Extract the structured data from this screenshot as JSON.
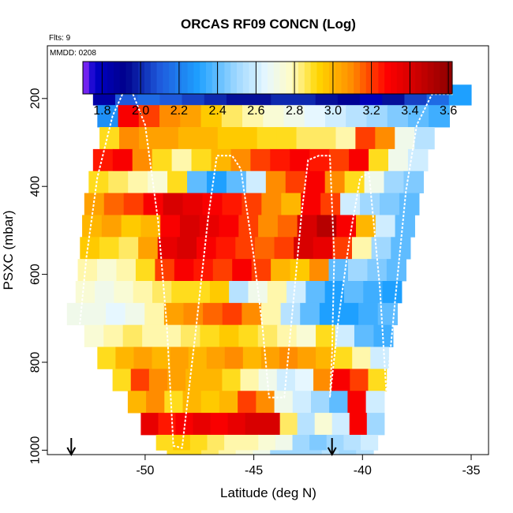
{
  "chart_data": {
    "type": "heatmap",
    "title": "ORCAS RF09 CONCN (Log)",
    "flight_note": "Flts: 9",
    "date_note": "MMDD: 0208",
    "xlabel": "Latitude (deg N)",
    "ylabel": "PSXC (mbar)",
    "xlim": [
      -54.5,
      -34.2
    ],
    "ylim": [
      1010,
      80
    ],
    "y_reversed": true,
    "x_ticks": [
      -50,
      -45,
      -40,
      -35
    ],
    "y_ticks": [
      200,
      400,
      600,
      800,
      1000
    ],
    "colorbar": {
      "range": [
        1.7,
        3.62
      ],
      "ticks": [
        1.8,
        2.0,
        2.2,
        2.4,
        2.6,
        2.8,
        3.0,
        3.2,
        3.4,
        3.6
      ],
      "stops": [
        {
          "v": 1.7,
          "c": "#9b30ff"
        },
        {
          "v": 1.76,
          "c": "#0000c8"
        },
        {
          "v": 1.92,
          "c": "#00008b"
        },
        {
          "v": 2.1,
          "c": "#1e5adc"
        },
        {
          "v": 2.3,
          "c": "#1ea0ff"
        },
        {
          "v": 2.5,
          "c": "#a0d8ff"
        },
        {
          "v": 2.65,
          "c": "#e6f7ff"
        },
        {
          "v": 2.78,
          "c": "#fffcc8"
        },
        {
          "v": 2.92,
          "c": "#ffd700"
        },
        {
          "v": 3.1,
          "c": "#ff8c00"
        },
        {
          "v": 3.28,
          "c": "#ff0000"
        },
        {
          "v": 3.45,
          "c": "#c80000"
        },
        {
          "v": 3.62,
          "c": "#8b0000"
        }
      ]
    },
    "rows": [
      {
        "p": 190,
        "x0": -52.4,
        "x1": -35.0,
        "values": [
          1.85,
          2.1,
          2.15,
          2.1,
          2.05,
          2.0,
          1.95,
          1.95,
          2.0,
          2.0,
          1.95,
          1.9,
          1.8,
          1.95,
          2.05,
          2.15,
          2.3
        ]
      },
      {
        "p": 240,
        "x0": -52.2,
        "x1": -36.0,
        "values": [
          2.25,
          3.3,
          3.2,
          3.1,
          3.05,
          2.95,
          2.85,
          2.8,
          2.75,
          2.7,
          2.65,
          2.6,
          2.55,
          2.5,
          2.45,
          2.4,
          2.35
        ]
      },
      {
        "p": 290,
        "x0": -52.1,
        "x1": -36.7,
        "values": [
          2.9,
          3.1,
          3.05,
          3.05,
          3.0,
          3.0,
          2.95,
          2.95,
          2.9,
          2.9,
          2.85,
          2.85,
          2.8,
          3.2,
          3.1,
          2.7,
          2.55
        ]
      },
      {
        "p": 340,
        "x0": -52.4,
        "x1": -37.0,
        "values": [
          3.25,
          3.3,
          3.1,
          2.9,
          2.8,
          2.9,
          3.0,
          3.1,
          3.2,
          3.25,
          3.3,
          3.25,
          3.2,
          3.3,
          2.9,
          2.7,
          2.6
        ]
      },
      {
        "p": 390,
        "x0": -52.6,
        "x1": -37.2,
        "values": [
          2.9,
          2.85,
          2.8,
          2.75,
          2.9,
          2.4,
          2.3,
          2.4,
          2.6,
          3.1,
          3.2,
          3.3,
          3.1,
          2.9,
          2.7,
          2.5,
          2.45
        ]
      },
      {
        "p": 440,
        "x0": -52.8,
        "x1": -37.4,
        "values": [
          3.05,
          3.15,
          3.2,
          3.3,
          3.4,
          3.35,
          3.3,
          3.25,
          3.2,
          3.1,
          3.0,
          3.3,
          3.2,
          2.6,
          2.5,
          2.45,
          2.4
        ]
      },
      {
        "p": 490,
        "x0": -52.9,
        "x1": -37.6,
        "values": [
          3.0,
          3.05,
          2.95,
          3.0,
          3.3,
          3.4,
          3.35,
          3.3,
          3.2,
          3.1,
          3.15,
          3.4,
          3.5,
          3.3,
          3.0,
          2.6,
          2.4
        ]
      },
      {
        "p": 540,
        "x0": -53.0,
        "x1": -37.8,
        "values": [
          2.95,
          2.9,
          2.85,
          3.05,
          3.35,
          3.4,
          3.3,
          3.25,
          3.2,
          3.15,
          3.2,
          3.4,
          3.35,
          3.2,
          2.8,
          2.5,
          2.4
        ]
      },
      {
        "p": 590,
        "x0": -53.1,
        "x1": -38.0,
        "values": [
          2.8,
          2.75,
          2.8,
          2.9,
          3.2,
          3.3,
          3.25,
          3.2,
          3.3,
          3.2,
          3.0,
          2.95,
          3.1,
          2.4,
          2.5,
          2.45,
          2.4
        ]
      },
      {
        "p": 640,
        "x0": -53.2,
        "x1": -38.2,
        "values": [
          2.75,
          2.7,
          2.75,
          2.8,
          2.85,
          2.9,
          2.9,
          2.95,
          2.55,
          2.7,
          2.8,
          2.6,
          2.4,
          2.3,
          2.4,
          2.35,
          2.3
        ]
      },
      {
        "p": 690,
        "x0": -53.6,
        "x1": -38.4,
        "values": [
          2.7,
          2.7,
          2.65,
          2.7,
          2.8,
          3.05,
          3.1,
          3.15,
          3.2,
          3.1,
          2.8,
          2.55,
          2.4,
          2.3,
          2.3,
          2.35,
          2.4
        ]
      },
      {
        "p": 740,
        "x0": -52.8,
        "x1": -38.6,
        "values": [
          2.75,
          2.8,
          2.85,
          2.8,
          2.8,
          2.85,
          2.9,
          2.95,
          2.9,
          2.85,
          2.8,
          2.75,
          2.9,
          2.6,
          2.4,
          2.35
        ]
      },
      {
        "p": 790,
        "x0": -52.2,
        "x1": -38.8,
        "values": [
          2.9,
          3.0,
          3.05,
          3.0,
          3.05,
          3.0,
          3.05,
          3.1,
          3.0,
          3.05,
          3.1,
          3.05,
          3.0,
          2.9,
          2.8,
          2.6
        ]
      },
      {
        "p": 840,
        "x0": -51.5,
        "x1": -38.9,
        "values": [
          2.9,
          3.2,
          3.1,
          3.05,
          3.0,
          3.0,
          2.9,
          2.8,
          2.7,
          2.6,
          2.65,
          3.1,
          3.3,
          3.2,
          2.9
        ]
      },
      {
        "p": 890,
        "x0": -50.8,
        "x1": -39.0,
        "values": [
          3.0,
          3.1,
          2.9,
          3.0,
          2.95,
          3.0,
          3.2,
          3.1,
          2.7,
          2.6,
          2.5,
          2.4,
          3.3,
          2.6
        ]
      },
      {
        "p": 940,
        "x0": -50.2,
        "x1": -39.0,
        "values": [
          3.35,
          3.25,
          3.3,
          3.35,
          3.3,
          3.35,
          3.4,
          3.4,
          2.85,
          2.55,
          2.75,
          2.6,
          3.3,
          2.5
        ]
      },
      {
        "p": 990,
        "x0": -49.5,
        "x1": -39.3,
        "values": [
          2.9,
          2.95,
          2.9,
          2.85,
          2.8,
          2.8,
          2.75,
          2.7,
          2.5,
          2.45,
          2.5,
          2.55,
          2.6
        ]
      },
      {
        "p": 1010,
        "x0": -49.0,
        "x1": -39.5,
        "values": [
          2.9,
          2.9,
          2.85,
          2.8,
          2.75,
          2.7,
          2.5,
          2.5,
          2.5,
          2.55,
          2.5,
          2.55
        ]
      }
    ],
    "flight_track": [
      [
        -53.5,
        1000
      ],
      [
        -53.1,
        760
      ],
      [
        -52.7,
        560
      ],
      [
        -52.2,
        380
      ],
      [
        -51.5,
        240
      ],
      [
        -51.0,
        185
      ],
      [
        -50.6,
        185
      ],
      [
        -50.0,
        260
      ],
      [
        -49.4,
        480
      ],
      [
        -49.0,
        720
      ],
      [
        -48.7,
        990
      ],
      [
        -48.3,
        995
      ],
      [
        -47.7,
        740
      ],
      [
        -47.1,
        470
      ],
      [
        -46.7,
        330
      ],
      [
        -46.0,
        330
      ],
      [
        -45.6,
        360
      ],
      [
        -45.0,
        560
      ],
      [
        -44.6,
        720
      ],
      [
        -44.3,
        880
      ],
      [
        -43.6,
        880
      ],
      [
        -43.1,
        620
      ],
      [
        -42.8,
        460
      ],
      [
        -42.5,
        340
      ],
      [
        -42.0,
        330
      ],
      [
        -41.5,
        330
      ],
      [
        -41.3,
        560
      ],
      [
        -41.4,
        780
      ],
      [
        -41.5,
        880
      ],
      [
        -41.1,
        700
      ],
      [
        -40.6,
        520
      ],
      [
        -40.1,
        380
      ],
      [
        -39.7,
        370
      ],
      [
        -39.2,
        630
      ],
      [
        -38.9,
        870
      ],
      [
        -38.5,
        660
      ],
      [
        -38.0,
        410
      ],
      [
        -37.5,
        260
      ],
      [
        -36.8,
        190
      ],
      [
        -35.8,
        190
      ]
    ],
    "markers": [
      -53.4,
      -41.4
    ]
  }
}
